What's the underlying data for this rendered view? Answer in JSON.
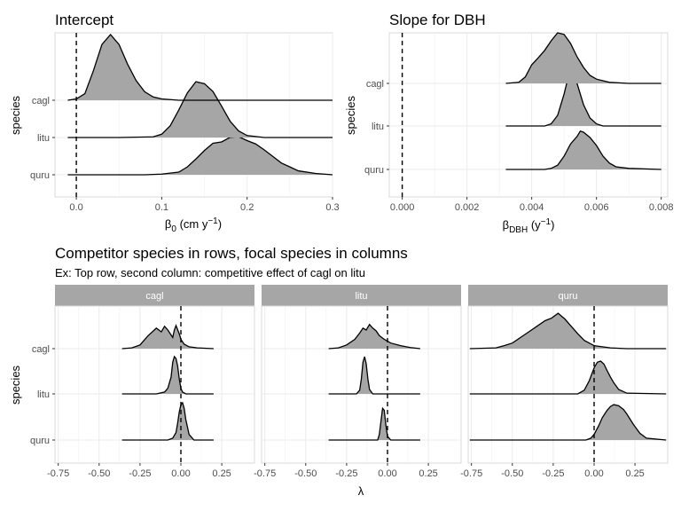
{
  "chart_data": [
    {
      "type": "ridgeline",
      "title": "Intercept",
      "xlabel": "β0 (cm y−1)",
      "xlabel_parts": {
        "main": "β",
        "sub": "0",
        "rest": " (cm y",
        "sup": "−1",
        "close": ")"
      },
      "ylabel": "species",
      "xlim": [
        -0.025,
        0.3
      ],
      "xticks": [
        0.0,
        0.1,
        0.2,
        0.3
      ],
      "xtick_labels": [
        "0.0",
        "0.1",
        "0.2",
        "0.3"
      ],
      "reference_line": 0,
      "categories": [
        "cagl",
        "litu",
        "quru"
      ],
      "series": [
        {
          "name": "cagl",
          "x": [
            -0.01,
            0.0,
            0.01,
            0.02,
            0.03,
            0.04,
            0.05,
            0.06,
            0.07,
            0.08,
            0.09,
            0.1,
            0.12,
            0.15,
            0.2,
            0.3
          ],
          "density": [
            0.0,
            0.02,
            0.1,
            0.45,
            0.85,
            1.0,
            0.85,
            0.55,
            0.3,
            0.13,
            0.05,
            0.02,
            0.0,
            0.0,
            0.0,
            0.0
          ]
        },
        {
          "name": "litu",
          "x": [
            -0.01,
            0.05,
            0.09,
            0.1,
            0.11,
            0.12,
            0.13,
            0.14,
            0.15,
            0.16,
            0.17,
            0.18,
            0.19,
            0.2,
            0.22,
            0.3
          ],
          "density": [
            0.0,
            0.0,
            0.01,
            0.05,
            0.18,
            0.42,
            0.68,
            0.85,
            0.82,
            0.7,
            0.48,
            0.25,
            0.1,
            0.03,
            0.0,
            0.0
          ]
        },
        {
          "name": "quru",
          "x": [
            -0.01,
            0.08,
            0.1,
            0.12,
            0.13,
            0.14,
            0.15,
            0.16,
            0.17,
            0.18,
            0.19,
            0.2,
            0.21,
            0.22,
            0.23,
            0.24,
            0.25,
            0.26,
            0.28,
            0.3
          ],
          "density": [
            0.0,
            0.0,
            0.01,
            0.04,
            0.12,
            0.24,
            0.37,
            0.48,
            0.5,
            0.57,
            0.58,
            0.52,
            0.47,
            0.38,
            0.28,
            0.18,
            0.12,
            0.06,
            0.02,
            0.0
          ]
        }
      ]
    },
    {
      "type": "ridgeline",
      "title": "Slope for DBH",
      "xlabel": "βDBH (y−1)",
      "xlabel_parts": {
        "main": "β",
        "sub": "DBH",
        "rest": " (y",
        "sup": "−1",
        "close": ")"
      },
      "ylabel": "species",
      "xlim": [
        -0.0004,
        0.0082
      ],
      "xticks": [
        0.0,
        0.002,
        0.004,
        0.006,
        0.008
      ],
      "xtick_labels": [
        "0.000",
        "0.002",
        "0.004",
        "0.006",
        "0.008"
      ],
      "reference_line": 0,
      "categories": [
        "cagl",
        "litu",
        "quru"
      ],
      "series": [
        {
          "name": "cagl",
          "x": [
            0.0032,
            0.0036,
            0.0038,
            0.004,
            0.0042,
            0.0044,
            0.0046,
            0.0048,
            0.005,
            0.0052,
            0.0054,
            0.0056,
            0.0058,
            0.006,
            0.0064,
            0.007,
            0.008
          ],
          "density": [
            0.0,
            0.02,
            0.12,
            0.35,
            0.48,
            0.62,
            0.8,
            0.95,
            0.92,
            0.75,
            0.5,
            0.3,
            0.15,
            0.08,
            0.02,
            0.0,
            0.0
          ]
        },
        {
          "name": "litu",
          "x": [
            0.0032,
            0.0044,
            0.0046,
            0.0048,
            0.005,
            0.0051,
            0.0052,
            0.0053,
            0.0054,
            0.0055,
            0.0056,
            0.0058,
            0.006,
            0.0062,
            0.008
          ],
          "density": [
            0.0,
            0.0,
            0.04,
            0.2,
            0.6,
            0.85,
            1.0,
            0.95,
            0.8,
            0.6,
            0.4,
            0.15,
            0.04,
            0.0,
            0.0
          ]
        },
        {
          "name": "quru",
          "x": [
            0.0032,
            0.0044,
            0.0046,
            0.0048,
            0.005,
            0.0052,
            0.0054,
            0.0055,
            0.0056,
            0.0058,
            0.006,
            0.0062,
            0.0064,
            0.0066,
            0.007,
            0.008
          ],
          "density": [
            0.0,
            0.0,
            0.02,
            0.08,
            0.25,
            0.48,
            0.62,
            0.72,
            0.7,
            0.6,
            0.45,
            0.25,
            0.12,
            0.05,
            0.02,
            0.0
          ]
        }
      ]
    },
    {
      "type": "ridgeline-facets",
      "title": "Competitor species in rows, focal species in columns",
      "subtitle": "Ex: Top row, second column: competitive effect of cagl on litu",
      "xlabel": "λ",
      "ylabel": "species",
      "xlim": [
        -0.77,
        0.45
      ],
      "xticks": [
        -0.75,
        -0.5,
        -0.25,
        0.0,
        0.25
      ],
      "xtick_labels": [
        "-0.75",
        "-0.50",
        "-0.25",
        "0.00",
        "0.25"
      ],
      "reference_line": 0,
      "categories": [
        "cagl",
        "litu",
        "quru"
      ],
      "facets": [
        {
          "label": "cagl",
          "series": [
            {
              "name": "cagl",
              "x": [
                -0.36,
                -0.3,
                -0.25,
                -0.2,
                -0.15,
                -0.12,
                -0.1,
                -0.08,
                -0.05,
                -0.04,
                -0.03,
                -0.01,
                0.0,
                0.02,
                0.05,
                0.1,
                0.2
              ],
              "density": [
                0.0,
                0.02,
                0.1,
                0.35,
                0.55,
                0.45,
                0.6,
                0.5,
                0.3,
                0.5,
                0.62,
                0.4,
                0.25,
                0.12,
                0.05,
                0.02,
                0.0
              ]
            },
            {
              "name": "litu",
              "x": [
                -0.36,
                -0.15,
                -0.1,
                -0.08,
                -0.06,
                -0.05,
                -0.04,
                -0.03,
                -0.02,
                -0.01,
                0.0,
                0.01,
                0.03,
                0.2
              ],
              "density": [
                0.0,
                0.0,
                0.05,
                0.15,
                0.45,
                0.85,
                1.0,
                0.95,
                0.75,
                0.4,
                0.15,
                0.05,
                0.0,
                0.0
              ]
            },
            {
              "name": "quru",
              "x": [
                -0.36,
                -0.08,
                -0.05,
                -0.03,
                -0.02,
                -0.01,
                0.0,
                0.01,
                0.02,
                0.03,
                0.05,
                0.08,
                0.2
              ],
              "density": [
                0.0,
                0.0,
                0.05,
                0.2,
                0.45,
                0.75,
                0.95,
                1.0,
                0.85,
                0.55,
                0.15,
                0.0,
                0.0
              ]
            }
          ]
        },
        {
          "label": "litu",
          "series": [
            {
              "name": "cagl",
              "x": [
                -0.36,
                -0.3,
                -0.25,
                -0.2,
                -0.17,
                -0.15,
                -0.13,
                -0.11,
                -0.09,
                -0.07,
                -0.05,
                -0.02,
                0.02,
                0.08,
                0.14,
                0.2
              ],
              "density": [
                0.0,
                0.02,
                0.1,
                0.25,
                0.42,
                0.55,
                0.5,
                0.65,
                0.55,
                0.48,
                0.35,
                0.25,
                0.15,
                0.08,
                0.03,
                0.0
              ]
            },
            {
              "name": "litu",
              "x": [
                -0.36,
                -0.19,
                -0.17,
                -0.16,
                -0.15,
                -0.14,
                -0.13,
                -0.12,
                -0.11,
                -0.09,
                0.2
              ],
              "density": [
                0.0,
                0.0,
                0.1,
                0.4,
                0.85,
                1.0,
                0.8,
                0.4,
                0.12,
                0.0,
                0.0
              ]
            },
            {
              "name": "quru",
              "x": [
                -0.36,
                -0.06,
                -0.05,
                -0.04,
                -0.03,
                -0.02,
                -0.01,
                0.0,
                0.02,
                0.2
              ],
              "density": [
                0.0,
                0.0,
                0.15,
                0.5,
                0.85,
                0.8,
                0.4,
                0.1,
                0.0,
                0.0
              ]
            }
          ]
        },
        {
          "label": "quru",
          "series": [
            {
              "name": "cagl",
              "x": [
                -0.76,
                -0.6,
                -0.55,
                -0.5,
                -0.45,
                -0.4,
                -0.35,
                -0.3,
                -0.26,
                -0.22,
                -0.18,
                -0.14,
                -0.1,
                -0.06,
                0.0,
                0.1,
                0.2,
                0.44
              ],
              "density": [
                0.0,
                0.02,
                0.08,
                0.15,
                0.3,
                0.45,
                0.6,
                0.75,
                0.82,
                0.95,
                0.8,
                0.6,
                0.4,
                0.22,
                0.08,
                0.02,
                0.0,
                0.0
              ]
            },
            {
              "name": "litu",
              "x": [
                -0.76,
                -0.1,
                -0.06,
                -0.03,
                0.0,
                0.02,
                0.04,
                0.06,
                0.08,
                0.1,
                0.12,
                0.15,
                0.2,
                0.44
              ],
              "density": [
                0.0,
                0.0,
                0.1,
                0.35,
                0.7,
                0.85,
                0.88,
                0.8,
                0.62,
                0.45,
                0.3,
                0.12,
                0.02,
                0.0
              ]
            },
            {
              "name": "quru",
              "x": [
                -0.76,
                -0.05,
                -0.02,
                0.0,
                0.03,
                0.05,
                0.08,
                0.1,
                0.12,
                0.15,
                0.18,
                0.2,
                0.24,
                0.28,
                0.32,
                0.44
              ],
              "density": [
                0.0,
                0.0,
                0.05,
                0.15,
                0.4,
                0.6,
                0.8,
                0.9,
                0.95,
                0.92,
                0.82,
                0.7,
                0.42,
                0.18,
                0.05,
                0.0
              ]
            }
          ]
        }
      ]
    }
  ]
}
